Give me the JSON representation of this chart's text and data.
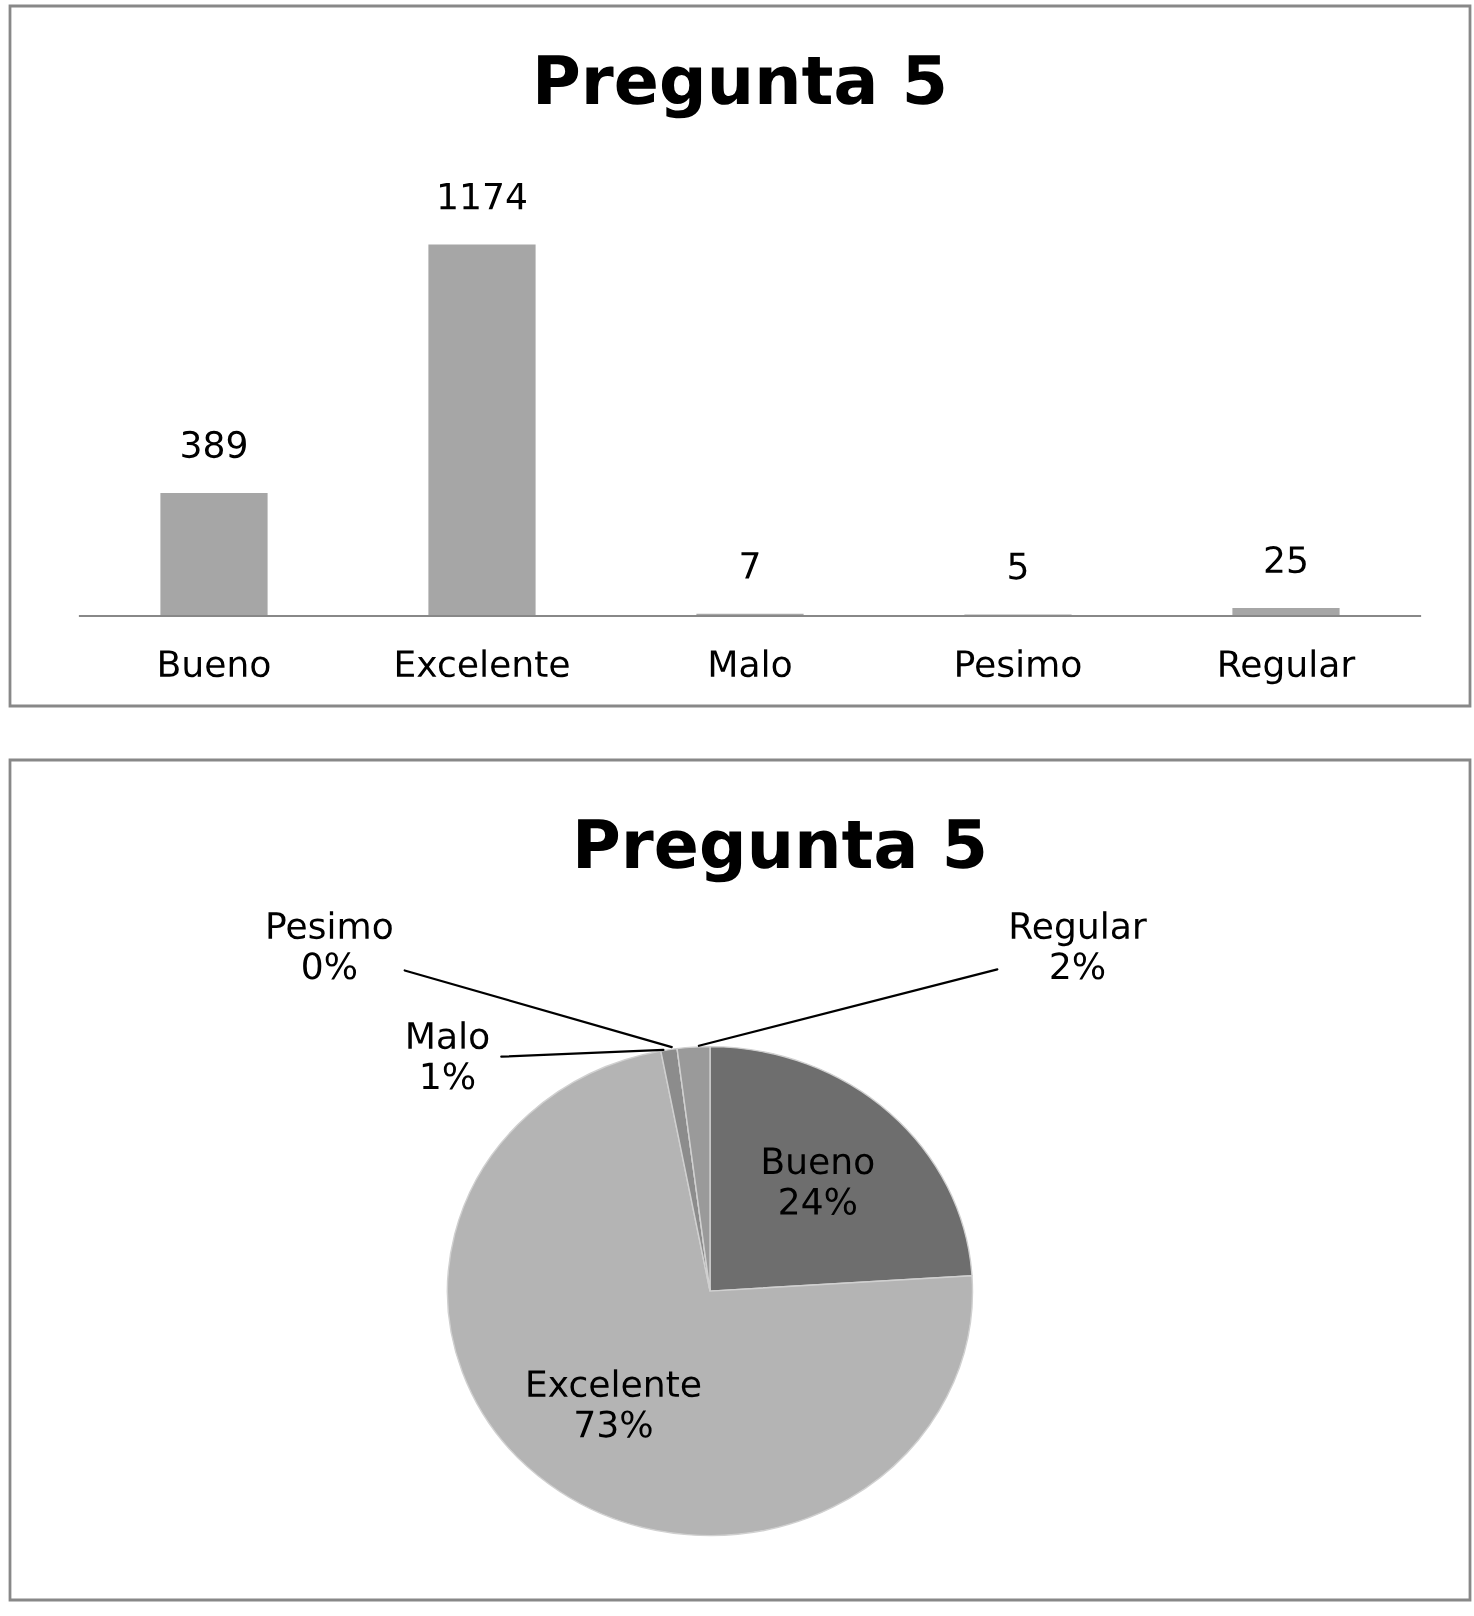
{
  "chart_data": [
    {
      "type": "bar",
      "title": "Pregunta 5",
      "categories": [
        "Bueno",
        "Excelente",
        "Malo",
        "Pesimo",
        "Regular"
      ],
      "values": [
        389,
        1174,
        7,
        5,
        25
      ],
      "color": "#a6a6a6",
      "data_labels": true,
      "grid": false,
      "legend": false
    },
    {
      "type": "pie",
      "title": "Pregunta 5",
      "categories": [
        "Bueno",
        "Excelente",
        "Malo",
        "Pesimo",
        "Regular"
      ],
      "values": [
        24,
        73,
        1,
        0,
        2
      ],
      "value_labels": [
        "24%",
        "73%",
        "1%",
        "0%",
        "2%"
      ],
      "colors": [
        "#6e6e6e",
        "#b4b4b4",
        "#8c8c8c",
        "#7a7a7a",
        "#9a9a9a"
      ],
      "legend": false
    }
  ]
}
